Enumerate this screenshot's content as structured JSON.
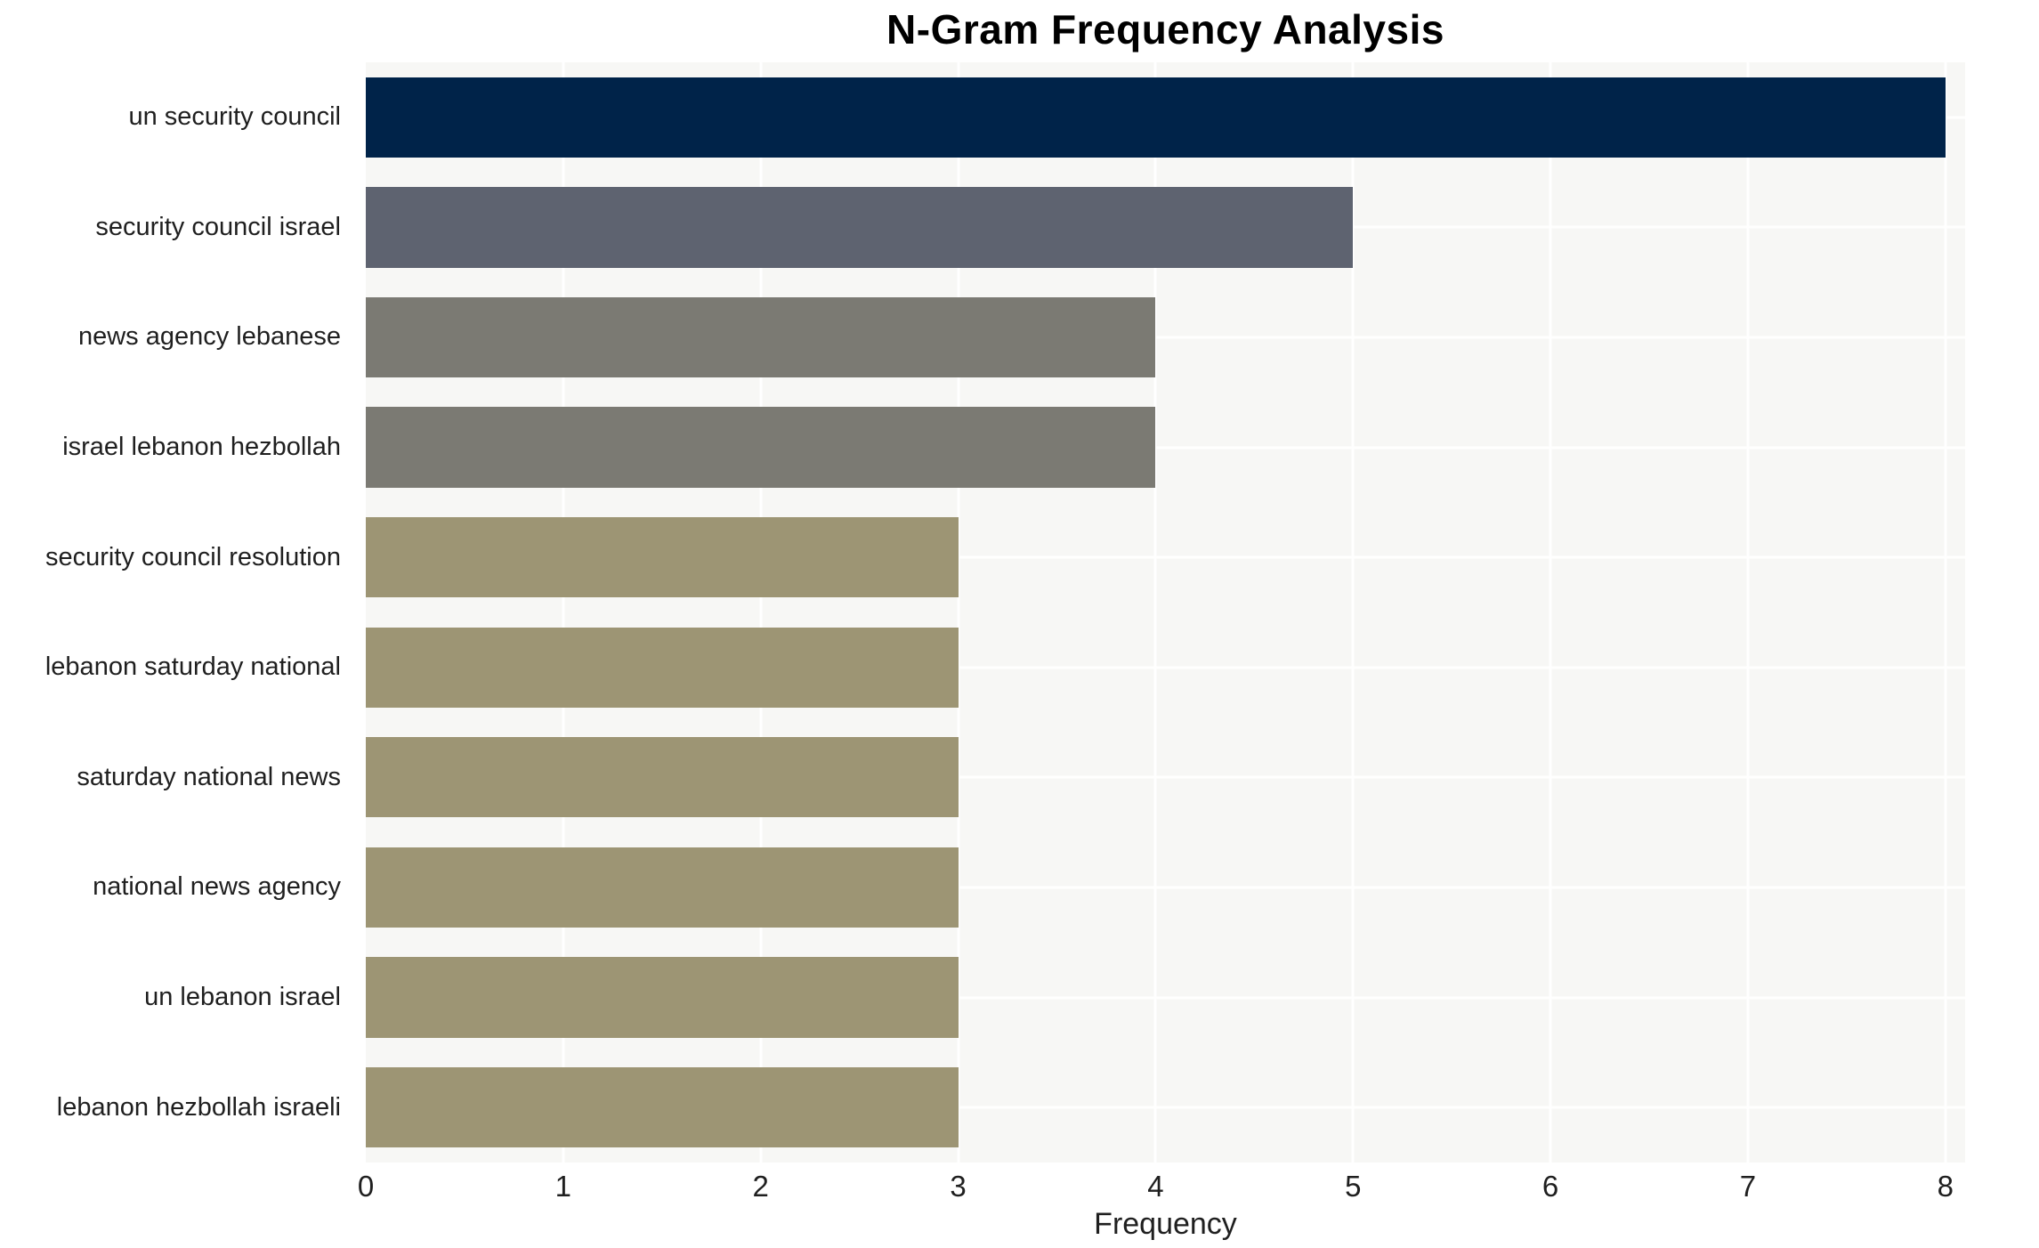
{
  "chart_data": {
    "type": "bar",
    "orientation": "horizontal",
    "title": "N-Gram Frequency Analysis",
    "xlabel": "Frequency",
    "ylabel": "",
    "categories": [
      "un security council",
      "security council israel",
      "news agency lebanese",
      "israel lebanon hezbollah",
      "security council resolution",
      "lebanon saturday national",
      "saturday national news",
      "national news agency",
      "un lebanon israel",
      "lebanon hezbollah israeli"
    ],
    "values": [
      8,
      5,
      4,
      4,
      3,
      3,
      3,
      3,
      3,
      3
    ],
    "bar_colors": [
      "#002349",
      "#5e6370",
      "#7b7a73",
      "#7b7a73",
      "#9d9574",
      "#9d9574",
      "#9d9574",
      "#9d9574",
      "#9d9574",
      "#9d9574"
    ],
    "x_ticks": [
      0,
      1,
      2,
      3,
      4,
      5,
      6,
      7,
      8
    ],
    "xlim": [
      0,
      8.1
    ],
    "grid": true,
    "grid_color": "#ffffff",
    "plot_background": "#f7f7f5",
    "figure_background": "#ffffff",
    "legend": "none"
  }
}
